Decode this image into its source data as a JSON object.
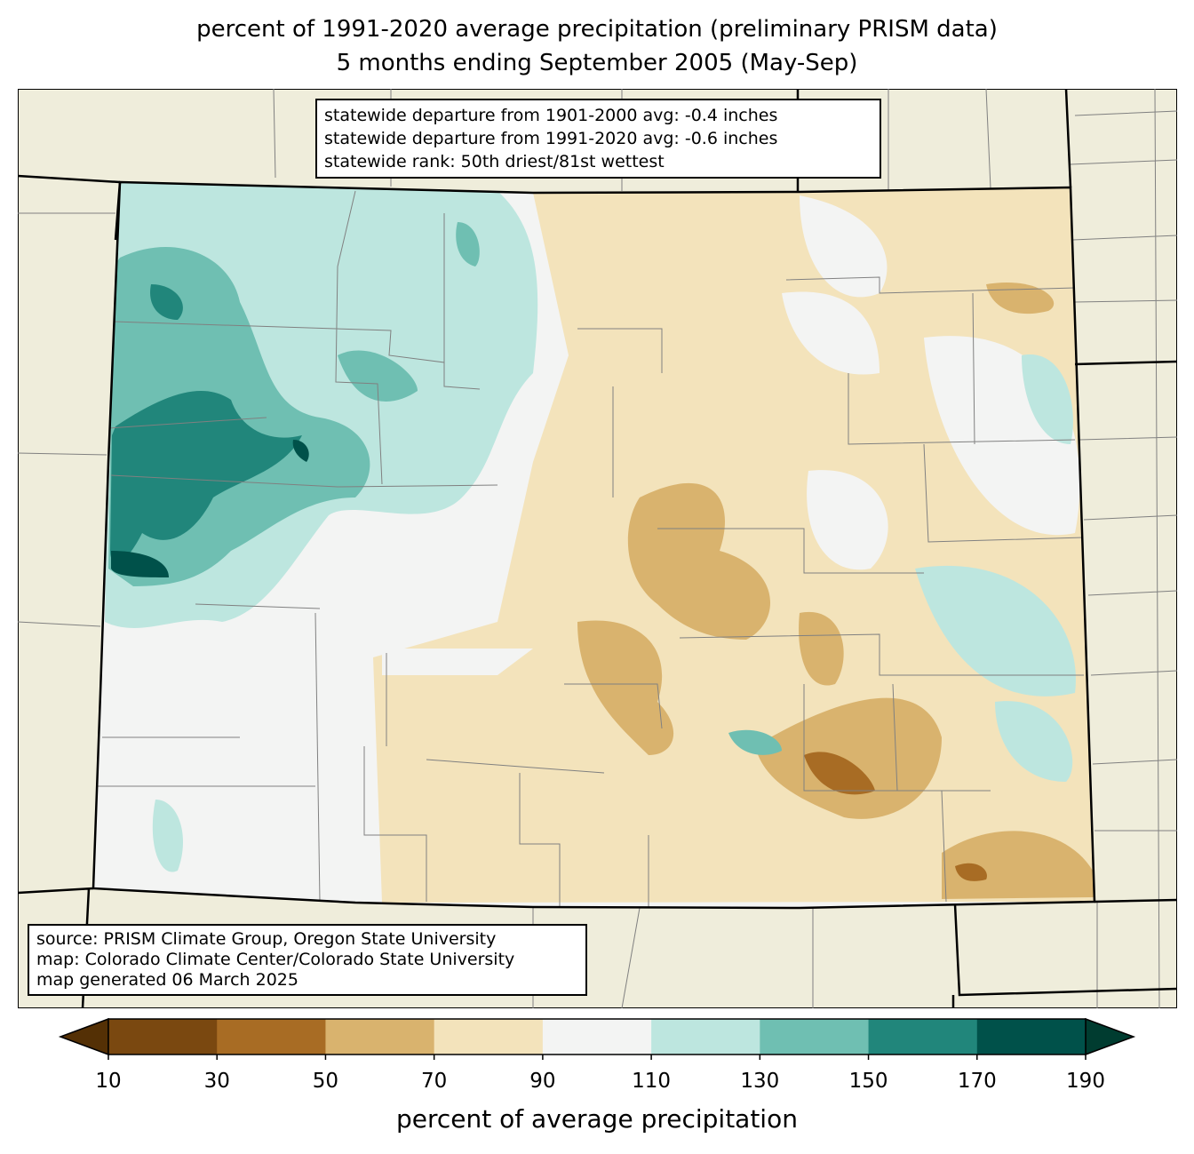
{
  "title": {
    "line1": "percent of 1991-2020 average precipitation (preliminary PRISM data)",
    "line2": "5 months ending September 2005 (May-Sep)"
  },
  "stats": {
    "line1": "statewide departure from 1901-2000 avg: -0.4 inches",
    "line2": "statewide departure from 1991-2020 avg: -0.6 inches",
    "line3": "statewide rank: 50th driest/81st wettest"
  },
  "source": {
    "line1": "source: PRISM Climate Group, Oregon State University",
    "line2": "map: Colorado Climate Center/Colorado State University",
    "line3": "map generated 06 March 2025"
  },
  "colorbar": {
    "label": "percent of average precipitation",
    "ticks": [
      "10",
      "30",
      "50",
      "70",
      "90",
      "110",
      "130",
      "150",
      "170",
      "190"
    ],
    "colors": [
      "#7a4810",
      "#a86c24",
      "#d9b36e",
      "#f3e3bb",
      "#f3f4f3",
      "#bde6df",
      "#6fbfb2",
      "#21867b",
      "#00514a"
    ],
    "under_color": "#543005",
    "over_color": "#003c30"
  }
}
